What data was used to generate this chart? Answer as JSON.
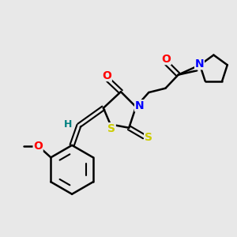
{
  "bg_color": "#e8e8e8",
  "bond_color": "#000000",
  "atom_colors": {
    "O": "#ff0000",
    "N": "#0000ff",
    "S": "#cccc00",
    "H": "#008080",
    "C": "#000000"
  },
  "figsize": [
    3.0,
    3.0
  ],
  "dpi": 100
}
